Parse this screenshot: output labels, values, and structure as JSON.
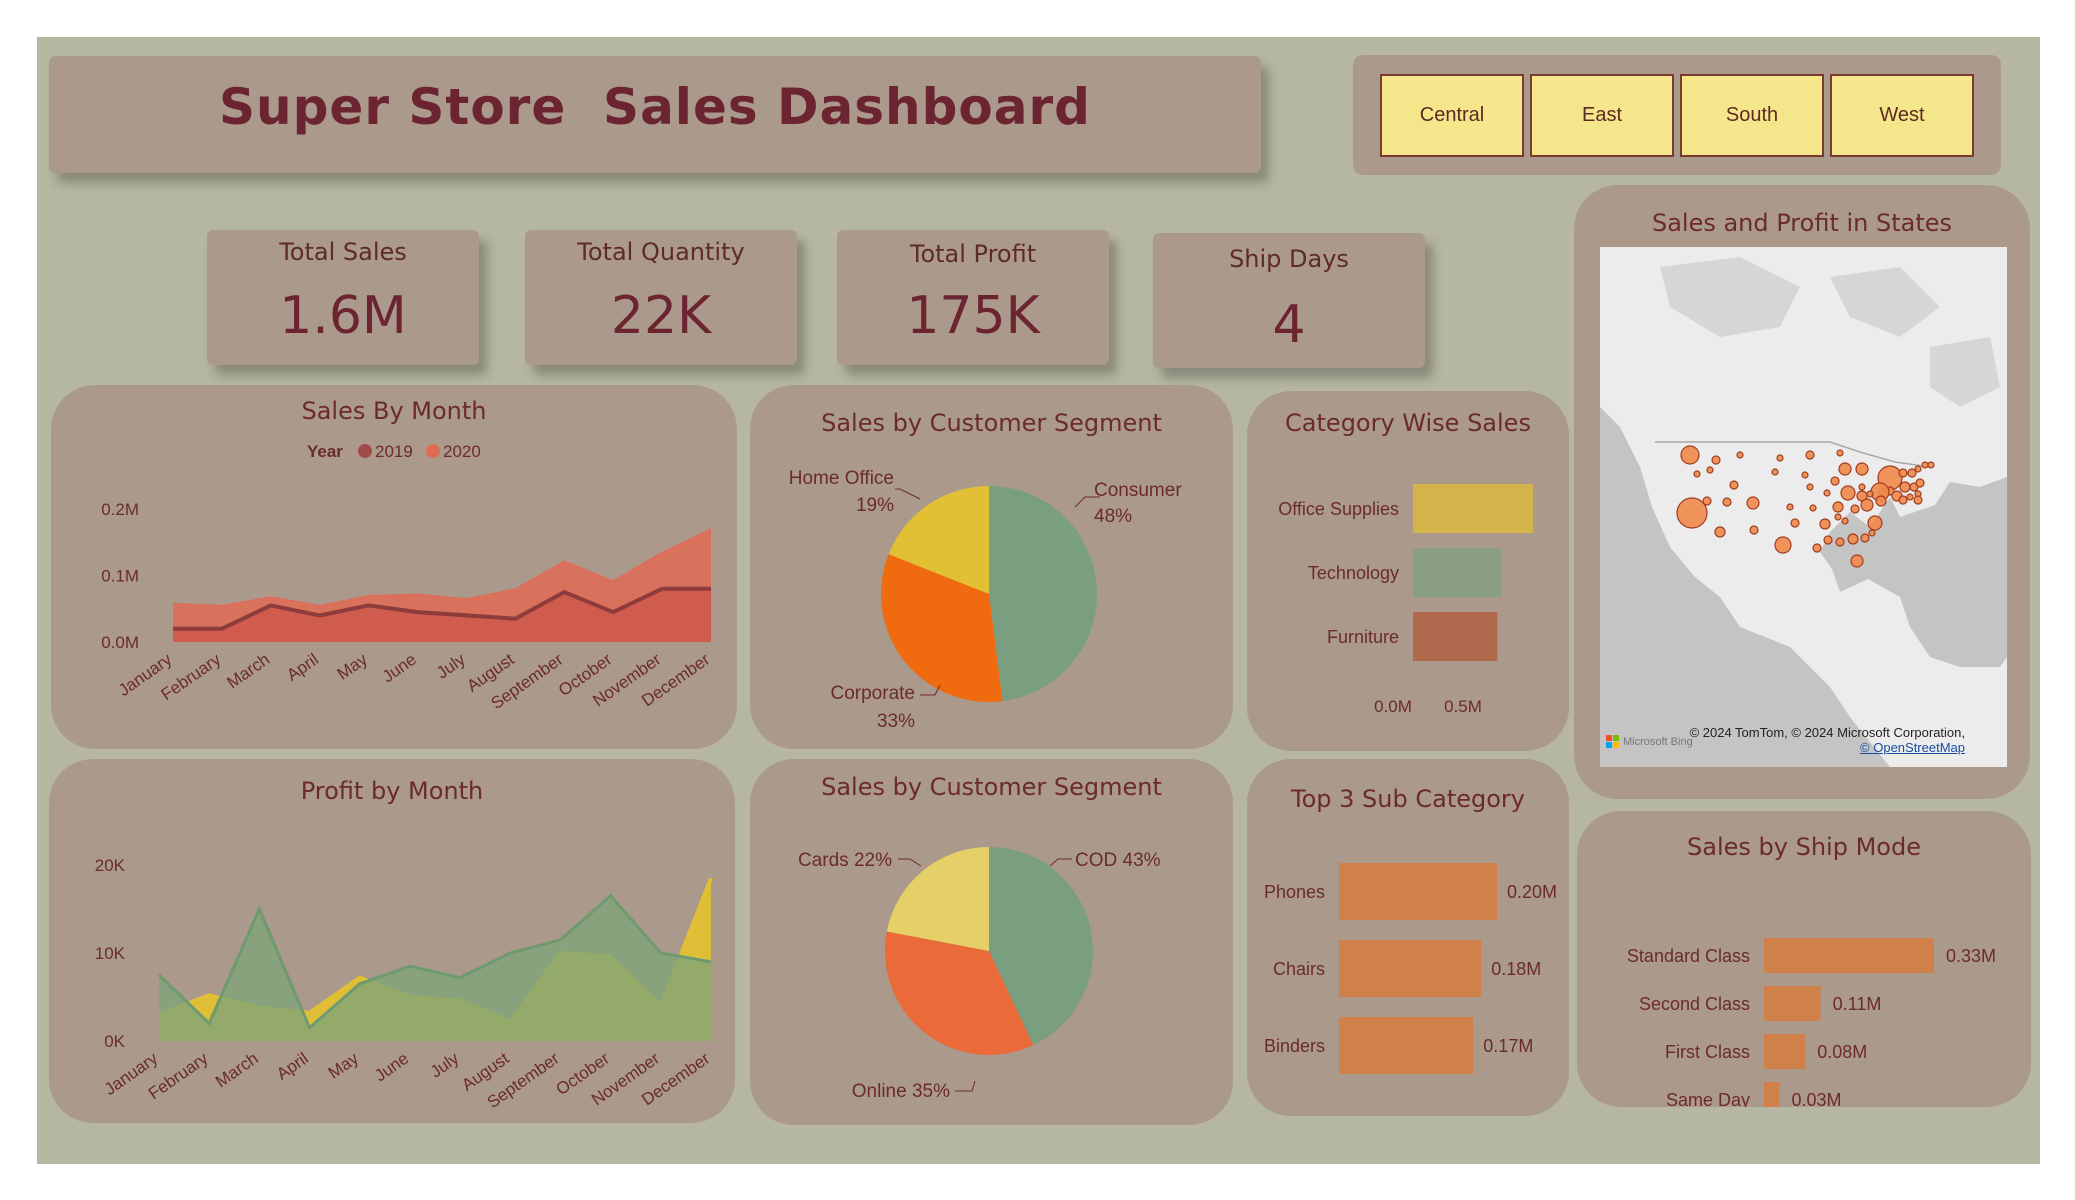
{
  "header": {
    "title": "Super Store  Sales Dashboard"
  },
  "slicer": {
    "regions": [
      "Central",
      "East",
      "South",
      "West"
    ]
  },
  "kpis": {
    "total_sales": {
      "label": "Total Sales",
      "value": "1.6M"
    },
    "total_quantity": {
      "label": "Total Quantity",
      "value": "22K"
    },
    "total_profit": {
      "label": "Total Profit",
      "value": "175K"
    },
    "ship_days": {
      "label": "Ship Days",
      "value": "4"
    }
  },
  "map": {
    "title": "Sales and Profit in States",
    "copyright": "© 2024 TomTom, © 2024 Microsoft Corporation,",
    "osm_link": "© OpenStreetMap",
    "bing_label": "Microsoft Bing"
  },
  "colors": {
    "y2019": "#a14a4a",
    "y2020": "#e06b55",
    "office": "#d4b44a",
    "technology": "#8a9e83",
    "furniture": "#b0694d",
    "bar": "#cf8149"
  },
  "chart_data": [
    {
      "type": "area",
      "title": "Sales By Month",
      "legend_title": "Year",
      "categories": [
        "January",
        "February",
        "March",
        "April",
        "May",
        "June",
        "July",
        "August",
        "September",
        "October",
        "November",
        "December"
      ],
      "series": [
        {
          "name": "2019",
          "values": [
            0.02,
            0.02,
            0.055,
            0.04,
            0.055,
            0.045,
            0.04,
            0.035,
            0.075,
            0.045,
            0.08,
            0.08
          ]
        },
        {
          "name": "2020",
          "values": [
            0.058,
            0.055,
            0.068,
            0.055,
            0.07,
            0.072,
            0.065,
            0.08,
            0.122,
            0.092,
            0.135,
            0.17
          ]
        }
      ],
      "yticks": [
        "0.0M",
        "0.1M",
        "0.2M"
      ],
      "ylim": [
        0,
        0.2
      ]
    },
    {
      "type": "area",
      "title": "Profit by Month",
      "categories": [
        "January",
        "February",
        "March",
        "April",
        "May",
        "June",
        "July",
        "August",
        "September",
        "October",
        "November",
        "December"
      ],
      "series": [
        {
          "name": "2019",
          "values": [
            3000,
            5200,
            3800,
            3200,
            7200,
            5000,
            4600,
            2200,
            10000,
            9600,
            4000,
            18500
          ]
        },
        {
          "name": "2020",
          "values": [
            7500,
            2000,
            15000,
            1500,
            6500,
            8500,
            7200,
            10000,
            11500,
            16500,
            10000,
            9000
          ]
        }
      ],
      "yticks": [
        "0K",
        "10K",
        "20K"
      ],
      "ylim": [
        0,
        20000
      ]
    },
    {
      "type": "pie",
      "title": "Sales by Customer Segment",
      "slices": [
        {
          "name": "Consumer",
          "value": 48,
          "label": "Consumer",
          "pct": "48%",
          "color": "#7a9e80"
        },
        {
          "name": "Corporate",
          "value": 33,
          "label": "Corporate",
          "pct": "33%",
          "color": "#f06a10"
        },
        {
          "name": "Home Office",
          "value": 19,
          "label": "Home Office",
          "pct": "19%",
          "color": "#e2c033"
        }
      ]
    },
    {
      "type": "pie",
      "title": "Sales by Customer Segment",
      "slices": [
        {
          "name": "COD",
          "value": 43,
          "label": "COD 43%",
          "color": "#7a9e80"
        },
        {
          "name": "Online",
          "value": 35,
          "label": "Online 35%",
          "color": "#ea6a3a"
        },
        {
          "name": "Cards",
          "value": 22,
          "label": "Cards 22%",
          "color": "#e5d068"
        }
      ]
    },
    {
      "type": "bar",
      "title": "Category Wise Sales",
      "categories": [
        "Office Supplies",
        "Technology",
        "Furniture"
      ],
      "values": [
        0.64,
        0.47,
        0.45
      ],
      "xticks": [
        "0.0M",
        "0.5M"
      ],
      "xlim": [
        0,
        0.8
      ]
    },
    {
      "type": "bar",
      "title": "Top 3 Sub Category",
      "categories": [
        "Phones",
        "Chairs",
        "Binders"
      ],
      "values": [
        0.2,
        0.18,
        0.17
      ],
      "labels": [
        "0.20M",
        "0.18M",
        "0.17M"
      ],
      "xlim": [
        0,
        0.2
      ]
    },
    {
      "type": "bar",
      "title": "Sales by Ship Mode",
      "categories": [
        "Standard Class",
        "Second Class",
        "First Class",
        "Same Day"
      ],
      "values": [
        0.33,
        0.11,
        0.08,
        0.03
      ],
      "labels": [
        "0.33M",
        "0.11M",
        "0.08M",
        "0.03M"
      ],
      "xlim": [
        0,
        0.33
      ]
    }
  ]
}
